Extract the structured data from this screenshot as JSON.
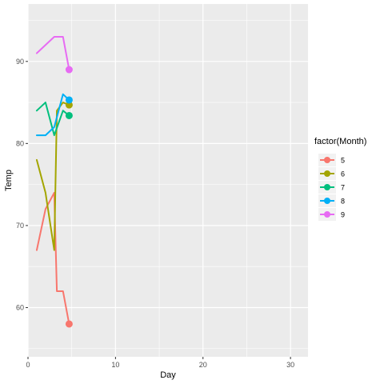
{
  "chart_data": {
    "type": "line",
    "xlabel": "Day",
    "ylabel": "Temp",
    "xlim": [
      0,
      32
    ],
    "ylim": [
      54,
      97
    ],
    "x_ticks": [
      0,
      10,
      20,
      30
    ],
    "y_ticks": [
      60,
      70,
      80,
      90
    ],
    "grid": true,
    "legend": {
      "title": "factor(Month)",
      "placement": "right"
    },
    "series": [
      {
        "name": "5",
        "color": "#F8766D",
        "x": [
          1,
          2,
          3,
          3.3,
          4,
          4.7
        ],
        "y": [
          67,
          72,
          74,
          62,
          62,
          58
        ],
        "end_point": [
          4.7,
          58
        ]
      },
      {
        "name": "6",
        "color": "#A3A500",
        "x": [
          1,
          2,
          3,
          3.3,
          4,
          4.7
        ],
        "y": [
          78,
          74,
          67,
          84,
          85,
          84.7
        ],
        "end_point": [
          4.7,
          84.7
        ]
      },
      {
        "name": "7",
        "color": "#00BF7D",
        "x": [
          1,
          2,
          3,
          4,
          4.7
        ],
        "y": [
          84,
          85,
          81,
          84,
          83.4
        ],
        "end_point": [
          4.7,
          83.4
        ]
      },
      {
        "name": "8",
        "color": "#00B0F6",
        "x": [
          1,
          2,
          3,
          4,
          4.7
        ],
        "y": [
          81,
          81,
          82,
          86,
          85.3
        ],
        "end_point": [
          4.7,
          85.3
        ]
      },
      {
        "name": "9",
        "color": "#E76BF3",
        "x": [
          1,
          2,
          3,
          4,
          4.7
        ],
        "y": [
          91,
          92,
          93,
          93,
          89
        ],
        "end_point": [
          4.7,
          89
        ]
      }
    ]
  },
  "legend_items": [
    {
      "label": "5",
      "color": "#F8766D"
    },
    {
      "label": "6",
      "color": "#A3A500"
    },
    {
      "label": "7",
      "color": "#00BF7D"
    },
    {
      "label": "8",
      "color": "#00B0F6"
    },
    {
      "label": "9",
      "color": "#E76BF3"
    }
  ]
}
